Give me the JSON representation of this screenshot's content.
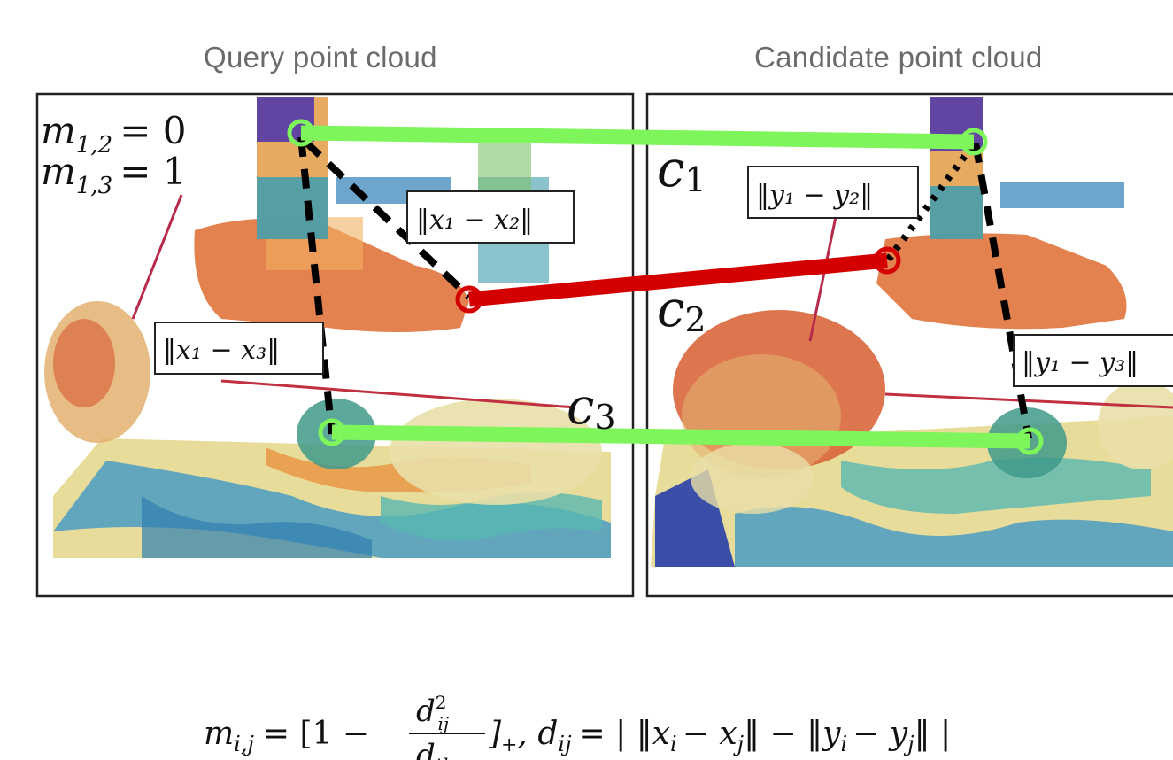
{
  "titles": {
    "query": "Query point cloud",
    "candidate": "Candidate point cloud"
  },
  "annotations": {
    "m12": "m",
    "m12_sub": "1,2",
    "m12_val": "= 0",
    "m13": "m",
    "m13_sub": "1,3",
    "m13_val": "= 1",
    "c1": "c",
    "c1_sub": "1",
    "c2": "c",
    "c2_sub": "2",
    "c3": "c",
    "c3_sub": "3",
    "x12": "‖x₁ − x₂‖",
    "x13": "‖x₁ − x₃‖",
    "y12": "‖y₁ − y₂‖",
    "y13": "‖y₁ − y₃‖"
  },
  "formula": {
    "lhs": "m",
    "lhs_sub": "i,j",
    "eq1": "= [1 −",
    "num": "d",
    "num_sup": "2",
    "num_sub": "ij",
    "den": "d",
    "den_sub": "thr",
    "rest1": "]",
    "rest1_sub": "+",
    "rest2": ", d",
    "rest2_sub": "ij",
    "rest3": "= | ‖x",
    "rest3_sub_i": "i",
    "rest4": "− x",
    "rest4_sub_j": "j",
    "rest5": "‖ − ‖y",
    "rest5_sub_i": "i",
    "rest6": "− y",
    "rest6_sub_j": "j",
    "rest7": "‖ |"
  },
  "colors": {
    "inlier": "#7ef55a",
    "outlier": "#d40000",
    "frame": "#222222"
  }
}
